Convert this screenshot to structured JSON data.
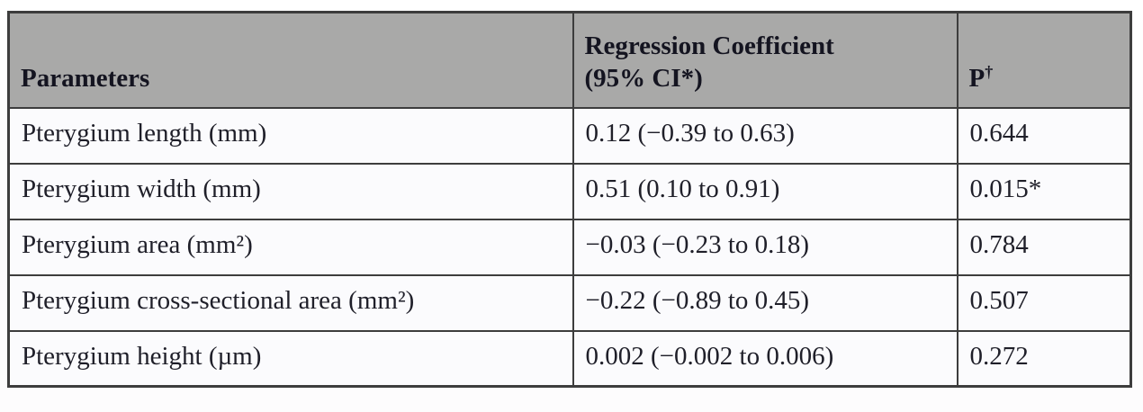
{
  "page": {
    "background": "#fdfdfd"
  },
  "table": {
    "colors": {
      "header_bg": "#a9a9a8",
      "cell_bg": "#fbfbfd",
      "border": "#3d3d3d",
      "text": "#1f1f29"
    },
    "columns": [
      {
        "label": "Parameters"
      },
      {
        "label_line1": "Regression Coefficient",
        "label_line2": "(95% CI*)"
      },
      {
        "label": "P",
        "label_sup": "†"
      }
    ],
    "rows": [
      {
        "parameter": "Pterygium length (mm)",
        "coefficient": "0.12 (−0.39 to 0.63)",
        "p": "0.644"
      },
      {
        "parameter": "Pterygium width (mm)",
        "coefficient": "0.51 (0.10 to 0.91)",
        "p": "0.015*"
      },
      {
        "parameter": "Pterygium area (mm²)",
        "coefficient": "−0.03 (−0.23 to 0.18)",
        "p": "0.784"
      },
      {
        "parameter": "Pterygium cross-sectional area (mm²)",
        "coefficient": "−0.22 (−0.89 to 0.45)",
        "p": "0.507"
      },
      {
        "parameter": "Pterygium height (µm)",
        "coefficient": "0.002 (−0.002 to 0.006)",
        "p": "0.272"
      }
    ]
  }
}
